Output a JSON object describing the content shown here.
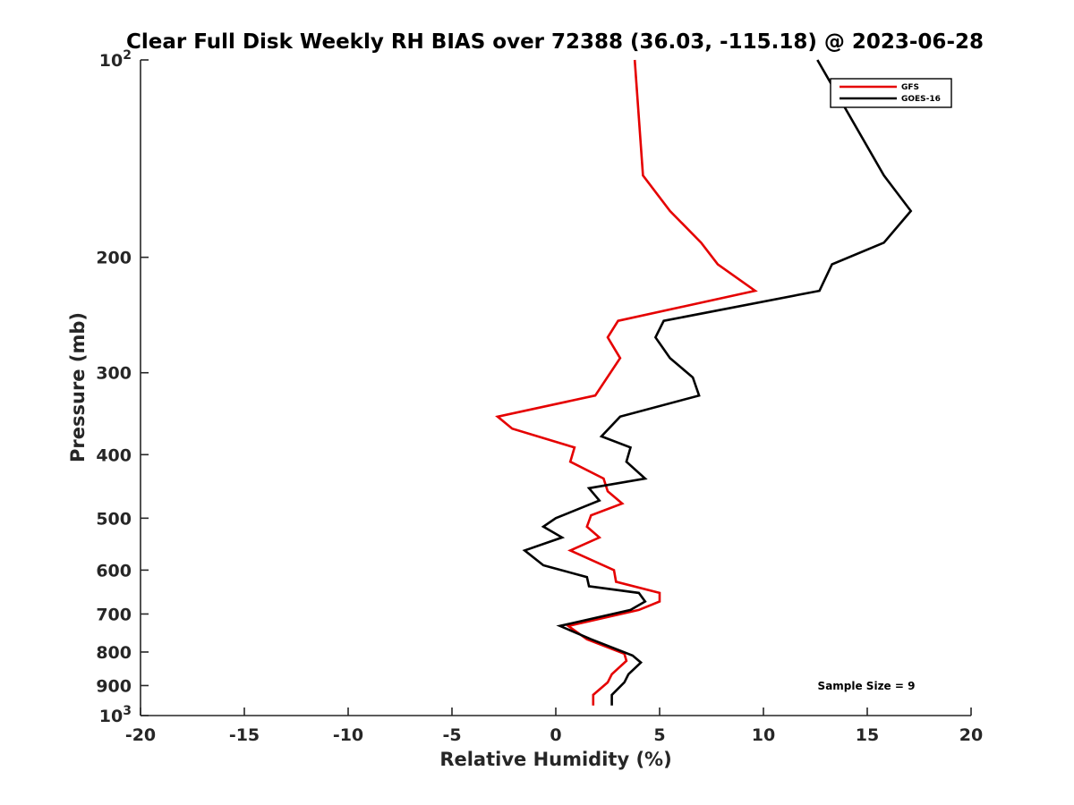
{
  "chart_data": {
    "type": "line",
    "title": "Clear Full Disk Weekly RH BIAS over 72388 (36.03, -115.18) @ 2023-06-28",
    "xlabel": "Relative Humidity (%)",
    "ylabel": "Pressure (mb)",
    "xlim": [
      -20,
      20
    ],
    "ylim": [
      100,
      1000
    ],
    "y_scale": "log",
    "y_reversed": true,
    "grid": false,
    "legend_position": "top-right",
    "x_ticks": [
      -20,
      -15,
      -10,
      -5,
      0,
      5,
      10,
      15,
      20
    ],
    "x_tick_labels": [
      "-20",
      "-15",
      "-10",
      "-5",
      "0",
      "5",
      "10",
      "15",
      "20"
    ],
    "y_ticks": [
      {
        "value": 100,
        "base": "10",
        "exp": "2"
      },
      {
        "value": 200,
        "label": "200"
      },
      {
        "value": 300,
        "label": "300"
      },
      {
        "value": 400,
        "label": "400"
      },
      {
        "value": 500,
        "label": "500"
      },
      {
        "value": 600,
        "label": "600"
      },
      {
        "value": 700,
        "label": "700"
      },
      {
        "value": 800,
        "label": "800"
      },
      {
        "value": 900,
        "label": "900"
      },
      {
        "value": 1000,
        "base": "10",
        "exp": "3"
      }
    ],
    "series": [
      {
        "name": "GFS",
        "color": "#e50000",
        "points": [
          [
            3.8,
            100
          ],
          [
            4.2,
            150
          ],
          [
            5.5,
            170
          ],
          [
            7.0,
            190
          ],
          [
            7.8,
            205
          ],
          [
            9.6,
            225
          ],
          [
            3.0,
            250
          ],
          [
            2.5,
            265
          ],
          [
            3.1,
            285
          ],
          [
            1.9,
            325
          ],
          [
            -2.8,
            350
          ],
          [
            -2.1,
            365
          ],
          [
            0.9,
            390
          ],
          [
            0.7,
            410
          ],
          [
            2.3,
            435
          ],
          [
            2.5,
            455
          ],
          [
            3.2,
            475
          ],
          [
            1.7,
            495
          ],
          [
            1.5,
            515
          ],
          [
            2.1,
            535
          ],
          [
            0.7,
            560
          ],
          [
            2.8,
            600
          ],
          [
            2.9,
            625
          ],
          [
            5.0,
            650
          ],
          [
            5.0,
            670
          ],
          [
            4.0,
            690
          ],
          [
            0.6,
            730
          ],
          [
            1.5,
            765
          ],
          [
            3.3,
            805
          ],
          [
            3.4,
            825
          ],
          [
            2.7,
            865
          ],
          [
            2.5,
            890
          ],
          [
            1.8,
            930
          ],
          [
            1.8,
            965
          ]
        ]
      },
      {
        "name": "GOES-16",
        "color": "#000000",
        "points": [
          [
            12.6,
            100
          ],
          [
            15.8,
            150
          ],
          [
            17.1,
            170
          ],
          [
            15.8,
            190
          ],
          [
            13.3,
            205
          ],
          [
            12.7,
            225
          ],
          [
            5.2,
            250
          ],
          [
            4.8,
            265
          ],
          [
            5.5,
            285
          ],
          [
            6.6,
            305
          ],
          [
            6.9,
            325
          ],
          [
            3.1,
            350
          ],
          [
            2.2,
            375
          ],
          [
            3.6,
            390
          ],
          [
            3.4,
            410
          ],
          [
            4.3,
            435
          ],
          [
            1.6,
            450
          ],
          [
            2.1,
            470
          ],
          [
            0.0,
            500
          ],
          [
            -0.6,
            515
          ],
          [
            0.3,
            535
          ],
          [
            -1.5,
            560
          ],
          [
            -0.6,
            590
          ],
          [
            1.5,
            615
          ],
          [
            1.6,
            635
          ],
          [
            4.0,
            650
          ],
          [
            4.3,
            670
          ],
          [
            3.6,
            690
          ],
          [
            0.2,
            730
          ],
          [
            1.7,
            765
          ],
          [
            3.7,
            810
          ],
          [
            4.1,
            830
          ],
          [
            3.5,
            865
          ],
          [
            3.3,
            890
          ],
          [
            2.7,
            930
          ],
          [
            2.7,
            965
          ]
        ]
      }
    ],
    "annotation": "Sample Size = 9"
  }
}
